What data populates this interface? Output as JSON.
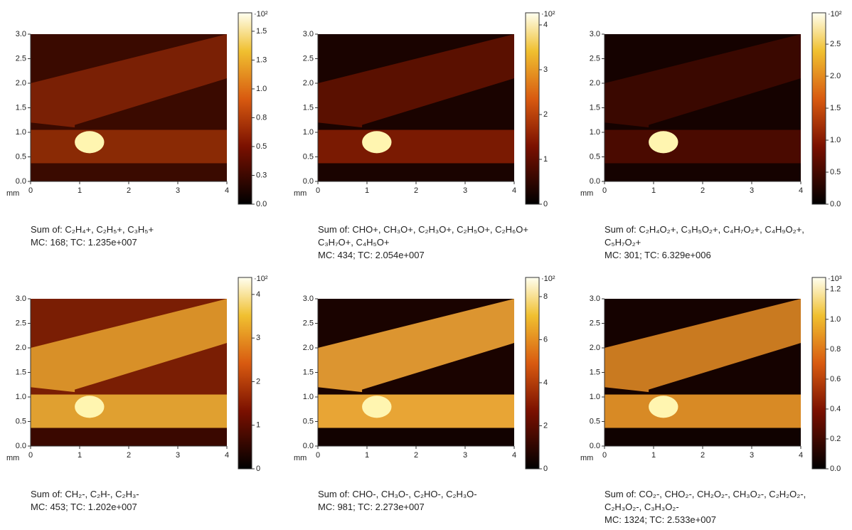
{
  "chart_data": [
    {
      "type": "heatmap",
      "xlabel": "mm",
      "xlim": [
        0,
        4
      ],
      "ylim": [
        0,
        3
      ],
      "xticks": [
        0,
        1,
        2,
        3,
        4
      ],
      "yticks": [
        {
          "value": 0,
          "label": "0.0"
        },
        {
          "value": 0.5,
          "label": "0.5"
        },
        {
          "value": 1,
          "label": "1.0"
        },
        {
          "value": 1.5,
          "label": "1.5"
        },
        {
          "value": 2,
          "label": "2.0"
        },
        {
          "value": 2.5,
          "label": "2.5"
        },
        {
          "value": 3,
          "label": "3.0"
        }
      ],
      "zscale_label": "·10²",
      "zlim": [
        0,
        1.66
      ],
      "zticks": [
        {
          "value": 0,
          "label": "0.0"
        },
        {
          "value": 0.25,
          "label": "0.3"
        },
        {
          "value": 0.5,
          "label": "0.5"
        },
        {
          "value": 0.75,
          "label": "0.8"
        },
        {
          "value": 1,
          "label": "1.0"
        },
        {
          "value": 1.25,
          "label": "1.3"
        },
        {
          "value": 1.5,
          "label": "1.5"
        }
      ],
      "caption": [
        "Sum of: C₂H₄+, C₂H₅+, C₃H₅+",
        "MC:   168; TC: 1.235e+007"
      ]
    },
    {
      "type": "heatmap",
      "xlabel": "mm",
      "xlim": [
        0,
        4
      ],
      "ylim": [
        0,
        3
      ],
      "xticks": [
        0,
        1,
        2,
        3,
        4
      ],
      "yticks": [
        {
          "value": 0,
          "label": "0.0"
        },
        {
          "value": 0.5,
          "label": "0.5"
        },
        {
          "value": 1,
          "label": "1.0"
        },
        {
          "value": 1.5,
          "label": "1.5"
        },
        {
          "value": 2,
          "label": "2.0"
        },
        {
          "value": 2.5,
          "label": "2.5"
        },
        {
          "value": 3,
          "label": "3.0"
        }
      ],
      "zscale_label": "·10²",
      "zlim": [
        0,
        4.27
      ],
      "zticks": [
        0,
        1,
        2,
        3,
        4
      ],
      "caption": [
        "Sum of: CHO+, CH₃O+, C₂H₃O+, C₂H₅O+, C₂H₆O+",
        "C₃H₇O+, C₄H₅O+",
        "MC:   434; TC: 2.054e+007"
      ]
    },
    {
      "type": "heatmap",
      "xlabel": "mm",
      "xlim": [
        0,
        4
      ],
      "ylim": [
        0,
        3
      ],
      "xticks": [
        0,
        1,
        2,
        3,
        4
      ],
      "yticks": [
        {
          "value": 0,
          "label": "0.0"
        },
        {
          "value": 0.5,
          "label": "0.5"
        },
        {
          "value": 1,
          "label": "1.0"
        },
        {
          "value": 1.5,
          "label": "1.5"
        },
        {
          "value": 2,
          "label": "2.0"
        },
        {
          "value": 2.5,
          "label": "2.5"
        },
        {
          "value": 3,
          "label": "3.0"
        }
      ],
      "zscale_label": "·10²",
      "zlim": [
        0,
        2.99
      ],
      "zticks": [
        {
          "value": 0,
          "label": "0.0"
        },
        {
          "value": 0.5,
          "label": "0.5"
        },
        {
          "value": 1,
          "label": "1.0"
        },
        {
          "value": 1.5,
          "label": "1.5"
        },
        {
          "value": 2,
          "label": "2.0"
        },
        {
          "value": 2.5,
          "label": "2.5"
        }
      ],
      "caption": [
        "Sum of: C₂H₄O₂+, C₃H₅O₂+, C₄H₇O₂+, C₄H₉O₂+,",
        "C₅H₇O₂+",
        "MC:   301; TC: 6.329e+006"
      ]
    },
    {
      "type": "heatmap",
      "xlabel": "mm",
      "xlim": [
        0,
        4
      ],
      "ylim": [
        0,
        3
      ],
      "xticks": [
        0,
        1,
        2,
        3,
        4
      ],
      "yticks": [
        {
          "value": 0,
          "label": "0.0"
        },
        {
          "value": 0.5,
          "label": "0.5"
        },
        {
          "value": 1,
          "label": "1.0"
        },
        {
          "value": 1.5,
          "label": "1.5"
        },
        {
          "value": 2,
          "label": "2.0"
        },
        {
          "value": 2.5,
          "label": "2.5"
        },
        {
          "value": 3,
          "label": "3.0"
        }
      ],
      "zscale_label": "·10²",
      "zlim": [
        0,
        4.39
      ],
      "zticks": [
        0,
        1,
        2,
        3,
        4
      ],
      "caption": [
        "Sum of: CH₂-, C₂H-, C₂H₃-",
        "MC:   453; TC: 1.202e+007"
      ]
    },
    {
      "type": "heatmap",
      "xlabel": "mm",
      "xlim": [
        0,
        4
      ],
      "ylim": [
        0,
        3
      ],
      "xticks": [
        0,
        1,
        2,
        3,
        4
      ],
      "yticks": [
        {
          "value": 0,
          "label": "0.0"
        },
        {
          "value": 0.5,
          "label": "0.5"
        },
        {
          "value": 1,
          "label": "1.0"
        },
        {
          "value": 1.5,
          "label": "1.5"
        },
        {
          "value": 2,
          "label": "2.0"
        },
        {
          "value": 2.5,
          "label": "2.5"
        },
        {
          "value": 3,
          "label": "3.0"
        }
      ],
      "zscale_label": "·10²",
      "zlim": [
        0,
        8.89
      ],
      "zticks": [
        0,
        2,
        4,
        6,
        8
      ],
      "caption": [
        "Sum of: CHO-, CH₃O-, C₂HO-, C₂H₃O-",
        "MC:   981; TC: 2.273e+007"
      ]
    },
    {
      "type": "heatmap",
      "xlabel": "mm",
      "xlim": [
        0,
        4
      ],
      "ylim": [
        0,
        3
      ],
      "xticks": [
        0,
        1,
        2,
        3,
        4
      ],
      "yticks": [
        {
          "value": 0,
          "label": "0.0"
        },
        {
          "value": 0.5,
          "label": "0.5"
        },
        {
          "value": 1,
          "label": "1.0"
        },
        {
          "value": 1.5,
          "label": "1.5"
        },
        {
          "value": 2,
          "label": "2.0"
        },
        {
          "value": 2.5,
          "label": "2.5"
        },
        {
          "value": 3,
          "label": "3.0"
        }
      ],
      "zscale_label": "·10³",
      "zlim": [
        0,
        1.28
      ],
      "zticks": [
        {
          "value": 0,
          "label": "0.0"
        },
        {
          "value": 0.2,
          "label": "0.2"
        },
        {
          "value": 0.4,
          "label": "0.4"
        },
        {
          "value": 0.6,
          "label": "0.6"
        },
        {
          "value": 0.8,
          "label": "0.8"
        },
        {
          "value": 1,
          "label": "1.0"
        },
        {
          "value": 1.2,
          "label": "1.2"
        }
      ],
      "caption": [
        "Sum of: CO₂-, CHO₂-, CH₂O₂-, CH₃O₂-, C₂H₂O₂-,",
        "C₂H₃O₂-, C₃H₃O₂-",
        "MC:   1324; TC: 2.533e+007"
      ]
    }
  ]
}
